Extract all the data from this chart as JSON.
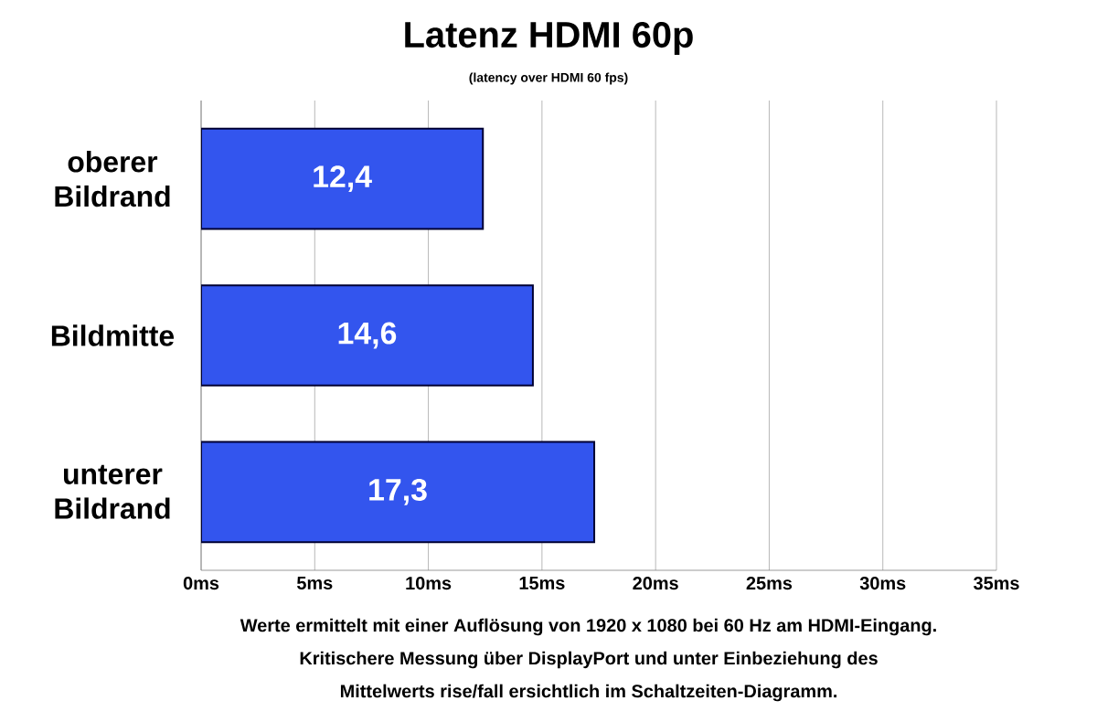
{
  "chart_data": {
    "type": "bar",
    "orientation": "horizontal",
    "title": "Latenz HDMI 60p",
    "subtitle": "(latency over HDMI 60  fps)",
    "categories": [
      "oberer Bildrand",
      "Bildmitte",
      "unterer Bildrand"
    ],
    "values": [
      12.4,
      14.6,
      17.3
    ],
    "value_labels": [
      "12,4",
      "14,6",
      "17,3"
    ],
    "color": "#3355ee",
    "xlim": [
      0,
      35
    ],
    "xticks": [
      {
        "value": 0,
        "label": "0ms"
      },
      {
        "value": 5,
        "label": "5ms"
      },
      {
        "value": 10,
        "label": "10ms"
      },
      {
        "value": 15,
        "label": "15ms"
      },
      {
        "value": 20,
        "label": "20ms"
      },
      {
        "value": 25,
        "label": "25ms"
      },
      {
        "value": 30,
        "label": "30ms"
      },
      {
        "value": 35,
        "label": "35ms"
      }
    ],
    "grid": "x",
    "annotations": [
      "Werte ermittelt mit einer Auflösung von 1920 x 1080 bei 60 Hz am HDMI-Eingang.",
      "Kritischere Messung über DisplayPort und unter Einbeziehung des",
      "Mittelwerts rise/fall ersichtlich im Schaltzeiten-Diagramm."
    ]
  }
}
